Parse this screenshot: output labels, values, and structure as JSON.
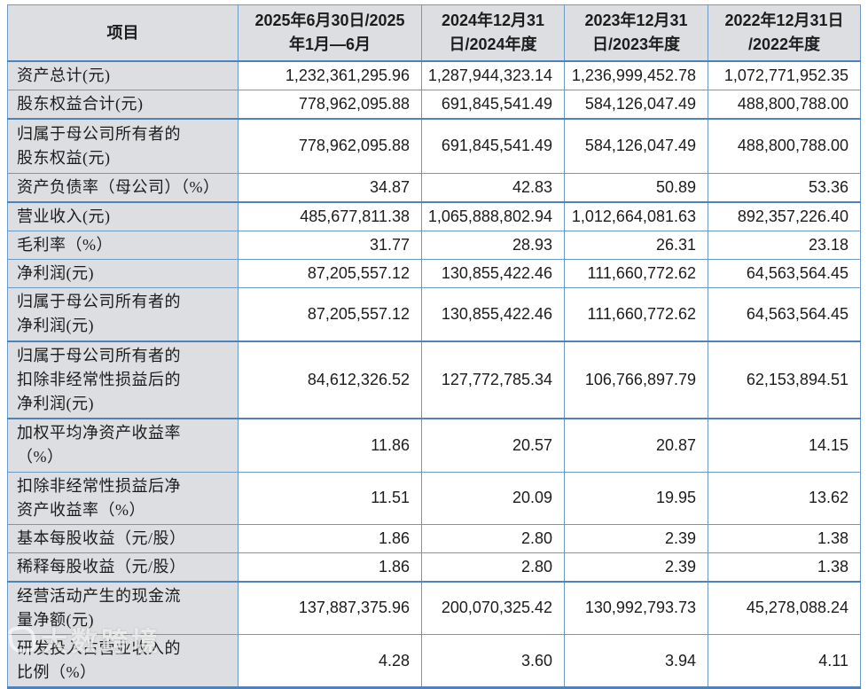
{
  "colors": {
    "border": "#6d99c4",
    "border_strong": "#4f81bd",
    "header_bg": "#dcdee1",
    "label_bg": "#dcdee1",
    "text": "#1c1c1c"
  },
  "watermark": {
    "text": "大数跨境"
  },
  "table": {
    "columns": [
      "项目",
      "2025年6月30日/2025\n年1月—6月",
      "2024年12月31\n日/2024年度",
      "2023年12月31\n日/2023年度",
      "2022年12月31日\n/2022年度"
    ],
    "rows": [
      {
        "label": "资产总计(元)",
        "values": [
          "1,232,361,295.96",
          "1,287,944,323.14",
          "1,236,999,452.78",
          "1,072,771,952.35"
        ]
      },
      {
        "label": "股东权益合计(元)",
        "values": [
          "778,962,095.88",
          "691,845,541.49",
          "584,126,047.49",
          "488,800,788.00"
        ]
      },
      {
        "label": "归属于母公司所有者的\n股东权益(元)",
        "values": [
          "778,962,095.88",
          "691,845,541.49",
          "584,126,047.49",
          "488,800,788.00"
        ]
      },
      {
        "label": "资产负债率（母公司）（%）",
        "values": [
          "34.87",
          "42.83",
          "50.89",
          "53.36"
        ]
      },
      {
        "label": "营业收入(元)",
        "values": [
          "485,677,811.38",
          "1,065,888,802.94",
          "1,012,664,081.63",
          "892,357,226.40"
        ]
      },
      {
        "label": "毛利率（%）",
        "values": [
          "31.77",
          "28.93",
          "26.31",
          "23.18"
        ]
      },
      {
        "label": "净利润(元)",
        "values": [
          "87,205,557.12",
          "130,855,422.46",
          "111,660,772.62",
          "64,563,564.45"
        ]
      },
      {
        "label": "归属于母公司所有者的\n净利润(元)",
        "values": [
          "87,205,557.12",
          "130,855,422.46",
          "111,660,772.62",
          "64,563,564.45"
        ]
      },
      {
        "label": "归属于母公司所有者的\n扣除非经常性损益后的\n净利润(元)",
        "values": [
          "84,612,326.52",
          "127,772,785.34",
          "106,766,897.79",
          "62,153,894.51"
        ]
      },
      {
        "label": "加权平均净资产收益率\n（%）",
        "values": [
          "11.86",
          "20.57",
          "20.87",
          "14.15"
        ]
      },
      {
        "label": "扣除非经常性损益后净\n资产收益率（%）",
        "values": [
          "11.51",
          "20.09",
          "19.95",
          "13.62"
        ]
      },
      {
        "label": "基本每股收益（元/股）",
        "values": [
          "1.86",
          "2.80",
          "2.39",
          "1.38"
        ]
      },
      {
        "label": "稀释每股收益（元/股）",
        "values": [
          "1.86",
          "2.80",
          "2.39",
          "1.38"
        ]
      },
      {
        "label": "经营活动产生的现金流\n量净额(元)",
        "values": [
          "137,887,375.96",
          "200,070,325.42",
          "130,992,793.73",
          "45,278,088.24"
        ]
      },
      {
        "label": "研发投入占营业收入的\n比例（%）",
        "values": [
          "4.28",
          "3.60",
          "3.94",
          "4.11"
        ]
      }
    ]
  }
}
